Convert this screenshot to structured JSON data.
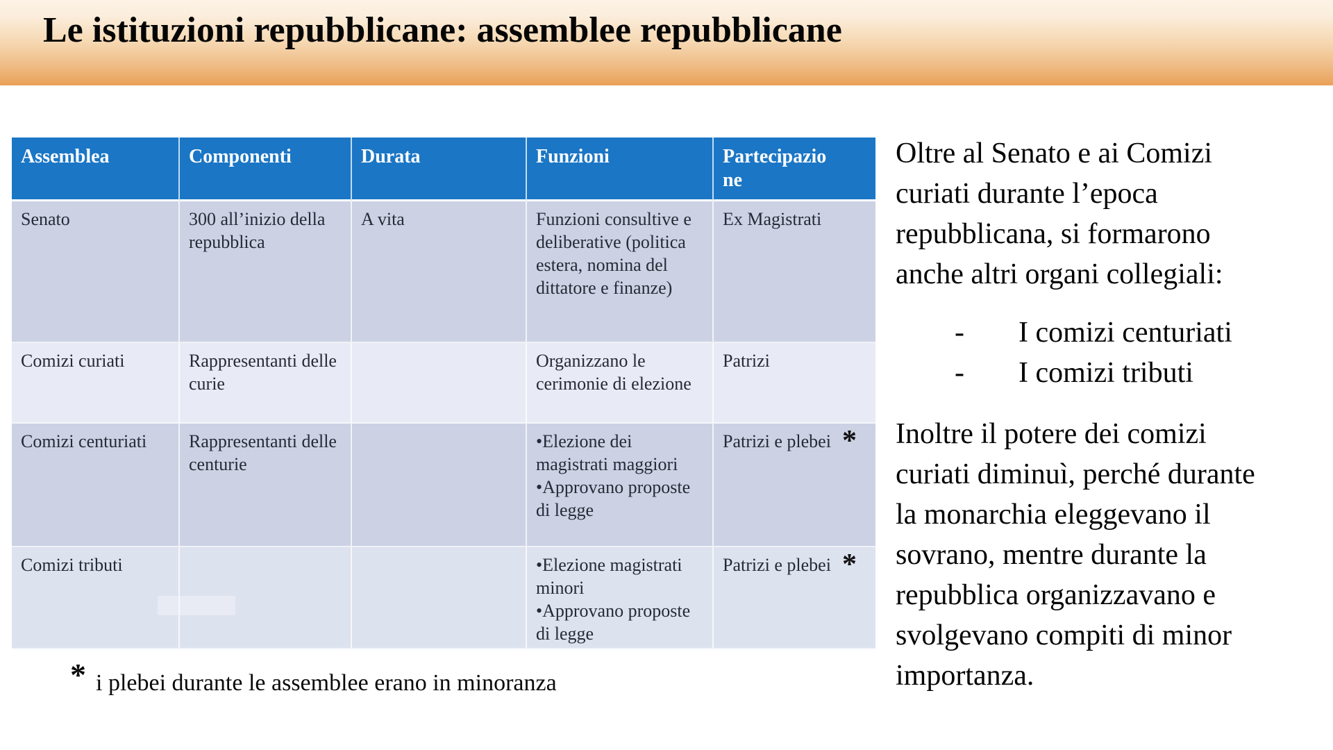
{
  "title": "Le istituzioni repubblicane: assemblee repubblicane",
  "colors": {
    "banner_top": "#fcf2e5",
    "banner_bottom": "#e9a158",
    "header_blue": "#1b76c5",
    "row_dark": "#ccd2e4",
    "row_light": "#e8ebf5",
    "cell_text": "#262a36"
  },
  "table": {
    "headers": [
      "Assemblea",
      "Componenti",
      "Durata",
      "Funzioni",
      "Partecipazione"
    ],
    "asterisk": "*",
    "rows": [
      {
        "assemblea": "Senato",
        "componenti": "300 all’inizio della repubblica",
        "durata": "A vita",
        "funzioni": "Funzioni consultive e deliberative (politica estera, nomina del dittatore e finanze)",
        "partecipazione": "Ex  Magistrati"
      },
      {
        "assemblea": "Comizi  curiati",
        "componenti": "Rappresentanti delle curie",
        "durata": "",
        "funzioni": "Organizzano le cerimonie di elezione",
        "partecipazione": "Patrizi"
      },
      {
        "assemblea": "Comizi centuriati",
        "componenti": "Rappresentanti delle centurie",
        "durata": "",
        "funzioni": "•Elezione dei magistrati maggiori\n•Approvano proposte di legge",
        "partecipazione": "Patrizi e plebei"
      },
      {
        "assemblea": "Comizi tributi",
        "componenti": "",
        "durata": "",
        "funzioni": "•Elezione magistrati minori\n•Approvano proposte di legge",
        "partecipazione": "Patrizi e plebei"
      }
    ]
  },
  "footnote": {
    "asterisk": "*",
    "text": "i plebei durante le assemblee erano in minoranza"
  },
  "right": {
    "para1": "Oltre al Senato e ai Comizi\ncuriati durante l’epoca\nrepubblicana, si formarono\nanche altri organi collegiali:",
    "list": [
      {
        "dash": "-",
        "label": "I comizi centuriati"
      },
      {
        "dash": "-",
        "label": "I comizi tributi"
      }
    ],
    "para2": "Inoltre il potere dei comizi\ncuriati diminuì, perché durante\nla monarchia eleggevano il\nsovrano, mentre durante la\nrepubblica organizzavano e\nsvolgevano compiti di minor\nimportanza."
  }
}
